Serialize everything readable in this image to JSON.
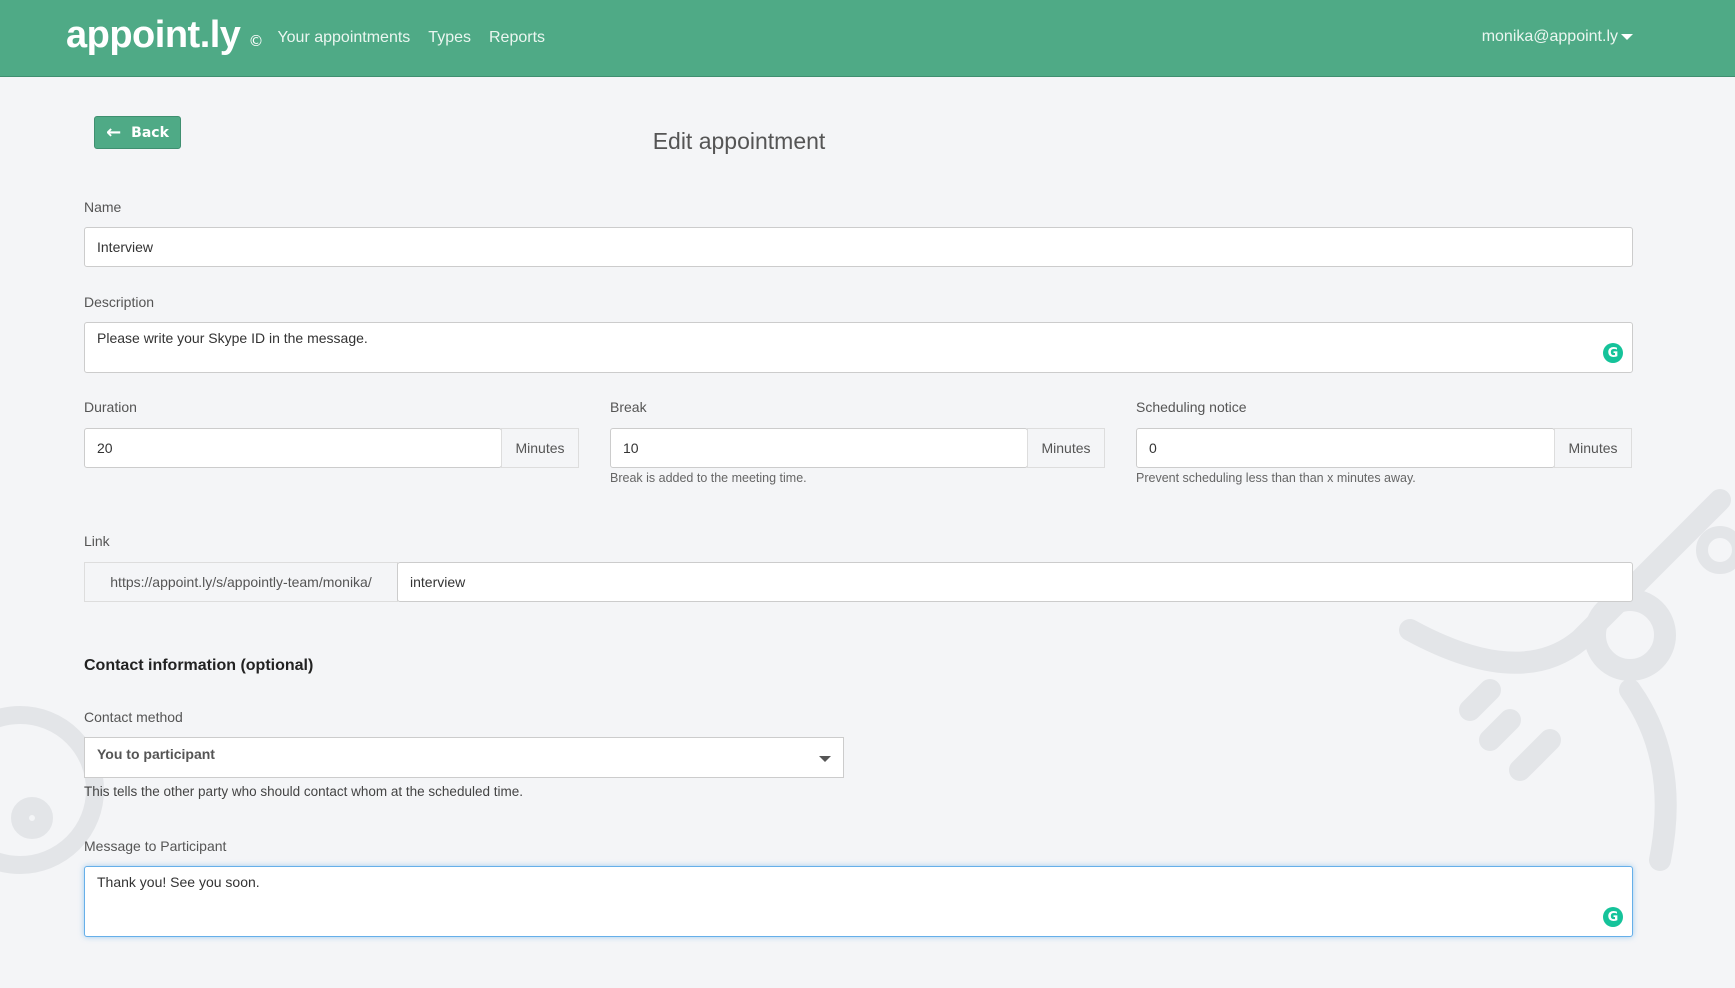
{
  "nav": {
    "logo": "appoint.ly",
    "copyright": "©",
    "links": [
      "Your appointments",
      "Types",
      "Reports"
    ],
    "user": "monika@appoint.ly"
  },
  "back_label": "Back",
  "title": "Edit appointment",
  "form": {
    "name": {
      "label": "Name",
      "value": "Interview"
    },
    "description": {
      "label": "Description",
      "value": "Please write your Skype ID in the message."
    },
    "duration": {
      "label": "Duration",
      "value": "20",
      "unit": "Minutes"
    },
    "break": {
      "label": "Break",
      "value": "10",
      "unit": "Minutes",
      "help": "Break is added to the meeting time."
    },
    "notice": {
      "label": "Scheduling notice",
      "value": "0",
      "unit": "Minutes",
      "help": "Prevent scheduling less than than x minutes away."
    },
    "link": {
      "label": "Link",
      "prefix": "https://appoint.ly/s/appointly-team/monika/",
      "value": "interview"
    },
    "contact_heading": "Contact information (optional)",
    "contact_method": {
      "label": "Contact method",
      "value": "You to participant",
      "help": "This tells the other party who should contact whom at the scheduled time."
    },
    "message": {
      "label": "Message to Participant",
      "value": "Thank you! See you soon."
    }
  },
  "colors": {
    "brand": "#4faa86",
    "grammarly": "#15c39a",
    "focus": "#66afe9"
  }
}
